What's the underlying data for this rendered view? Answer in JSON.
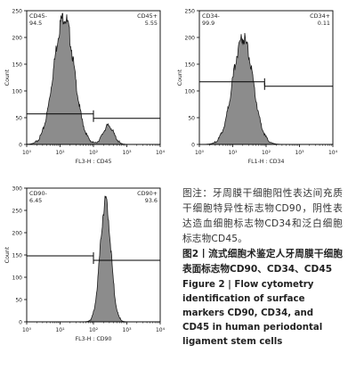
{
  "figure": {
    "colors": {
      "fill": "#8c8c8c",
      "outline": "#1a1a1a"
    },
    "y_ticks": [
      "0",
      "50",
      "100",
      "150",
      "200",
      "250"
    ],
    "y_ticks_c": [
      "0",
      "50",
      "100",
      "150",
      "200",
      "250",
      "300"
    ],
    "x_ticks": [
      "10⁰",
      "10¹",
      "10²",
      "10³",
      "10⁴"
    ],
    "y_label": "Count"
  },
  "chart_data": [
    {
      "type": "histogram",
      "panel": "CD45",
      "xlabel": "FL3-H : CD45",
      "ylabel": "Count",
      "x_scale": "log",
      "xlim": [
        1,
        10000
      ],
      "ylim": [
        0,
        250
      ],
      "gate_labels": {
        "left": "CD45-",
        "right": "CD45+"
      },
      "gate_values": {
        "left": "94.5",
        "right": "5.55"
      },
      "gate_boundary": 100,
      "gate_height": 57,
      "peaks": [
        {
          "center": 13,
          "height": 240
        },
        {
          "center": 280,
          "height": 35
        }
      ]
    },
    {
      "type": "histogram",
      "panel": "CD34",
      "xlabel": "FL1-H : CD34",
      "ylabel": "Count",
      "x_scale": "log",
      "xlim": [
        1,
        10000
      ],
      "ylim": [
        0,
        250
      ],
      "gate_labels": {
        "left": "CD34-",
        "right": "CD34+"
      },
      "gate_values": {
        "left": "99.9",
        "right": "0.11"
      },
      "gate_boundary": 90,
      "gate_height": 117,
      "peaks": [
        {
          "center": 20,
          "height": 200
        }
      ]
    },
    {
      "type": "histogram",
      "panel": "CD90",
      "xlabel": "FL3-H : CD90",
      "ylabel": "Count",
      "x_scale": "log",
      "xlim": [
        1,
        10000
      ],
      "ylim": [
        0,
        300
      ],
      "gate_labels": {
        "left": "CD90-",
        "right": "CD90+"
      },
      "gate_values": {
        "left": "6.45",
        "right": "93.6"
      },
      "gate_boundary": 100,
      "gate_height": 148,
      "peaks": [
        {
          "center": 230,
          "height": 270
        }
      ]
    }
  ],
  "caption": {
    "zh_desc": "图注：牙周膜干细胞阳性表达间充质干细胞特异性标志物CD90，阴性表达造血细胞标志物CD34和泛白细胞标志物CD45。",
    "zh_title": "图2丨流式细胞术鉴定人牙周膜干细胞表面标志物CD90、CD34、CD45",
    "en_title": "Figure 2 | Flow cytometry identification of surface markers CD90, CD34, and CD45 in human periodontal ligament stem cells"
  }
}
